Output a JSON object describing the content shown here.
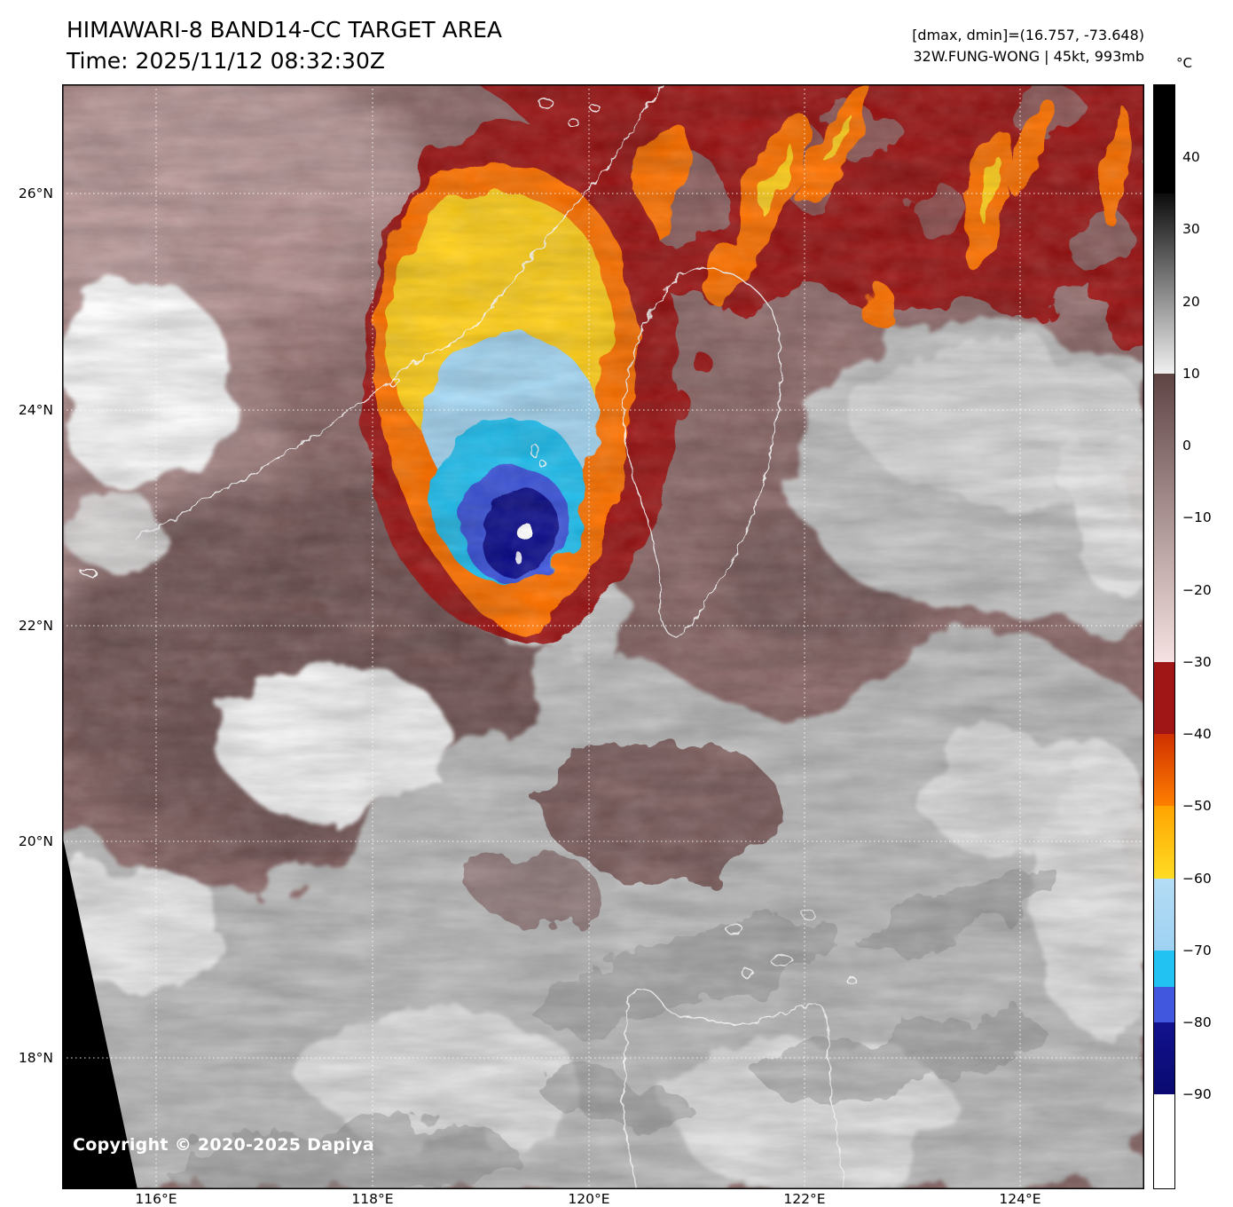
{
  "header": {
    "title": "HIMAWARI-8 BAND14-CC TARGET AREA",
    "time": "Time: 2025/11/12 08:32:30Z",
    "dmax_dmin": "[dmax, dmin]=(16.757, -73.648)",
    "storm_info": "32W.FUNG-WONG | 45kt, 993mb"
  },
  "storm": {
    "designation": "32W",
    "name": "FUNG-WONG",
    "intensity": "45kt",
    "pressure": "993mb",
    "dmax": 16.757,
    "dmin": -73.648
  },
  "colorbar": {
    "unit": "°C",
    "scale": {
      "top_value": 50,
      "bottom_value": -103
    },
    "ticks": [
      {
        "value": 40,
        "label": "40"
      },
      {
        "value": 30,
        "label": "30"
      },
      {
        "value": 20,
        "label": "20"
      },
      {
        "value": 10,
        "label": "10"
      },
      {
        "value": 0,
        "label": "0"
      },
      {
        "value": -10,
        "label": "−10"
      },
      {
        "value": -20,
        "label": "−20"
      },
      {
        "value": -30,
        "label": "−30"
      },
      {
        "value": -40,
        "label": "−40"
      },
      {
        "value": -50,
        "label": "−50"
      },
      {
        "value": -60,
        "label": "−60"
      },
      {
        "value": -70,
        "label": "−70"
      },
      {
        "value": -80,
        "label": "−80"
      },
      {
        "value": -90,
        "label": "−90"
      }
    ],
    "segments": [
      {
        "from": 50,
        "to": 35,
        "c0": "#000000",
        "c1": "#000000"
      },
      {
        "from": 35,
        "to": 10,
        "c0": "#0c0c0c",
        "c1": "#f0f0f0"
      },
      {
        "from": 10,
        "to": -30,
        "c0": "#5f4444",
        "c1": "#f6e2e2"
      },
      {
        "from": -30,
        "to": -40,
        "c0": "#a01616",
        "c1": "#a01616"
      },
      {
        "from": -40,
        "to": -50,
        "c0": "#cf3000",
        "c1": "#ff8000"
      },
      {
        "from": -50,
        "to": -60,
        "c0": "#ffa400",
        "c1": "#ffdc24"
      },
      {
        "from": -60,
        "to": -70,
        "c0": "#b4dcf5",
        "c1": "#9ed2f2"
      },
      {
        "from": -70,
        "to": -75,
        "c0": "#22c2f2",
        "c1": "#22c2f2"
      },
      {
        "from": -75,
        "to": -80,
        "c0": "#4057de",
        "c1": "#4057de"
      },
      {
        "from": -80,
        "to": -90,
        "c0": "#12128e",
        "c1": "#0a0a70"
      },
      {
        "from": -90,
        "to": -103,
        "c0": "#ffffff",
        "c1": "#ffffff"
      }
    ]
  },
  "axes": {
    "lat": [
      "26°N",
      "24°N",
      "22°N",
      "20°N",
      "18°N"
    ],
    "lon": [
      "116°E",
      "118°E",
      "120°E",
      "122°E",
      "124°E"
    ]
  },
  "map_overlay": {
    "copyright": "Copyright © 2020-2025 Dapiya"
  },
  "palette": {
    "background_warm": "#8d6a6a",
    "cold_ring_dark_red": "#9c1313",
    "cold_ring_orange": "#ff7300",
    "cold_ring_yellow": "#ffd01e",
    "cold_ring_pale_blue": "#a6d7f3",
    "cold_ring_cyan": "#22c2f2",
    "cold_ring_blue": "#3c55dc",
    "cold_core_navy": "#10108c",
    "coastline": "#ffffff",
    "gridline": "#ffffff"
  }
}
